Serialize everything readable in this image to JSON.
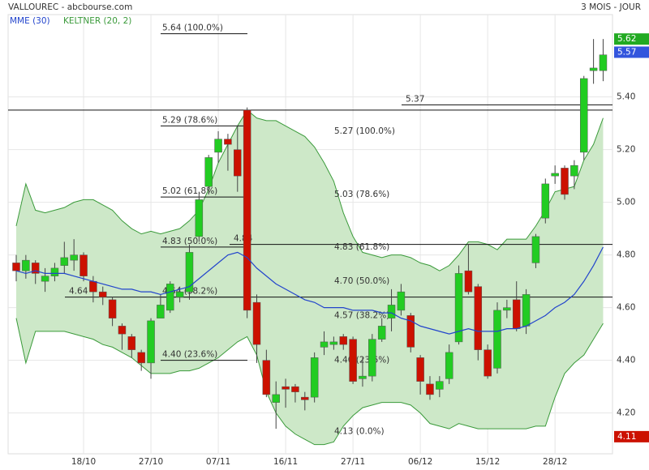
{
  "chart_data": {
    "type": "candlestick",
    "title": "VALLOUREC - abcbourse.com",
    "period": "3 MOIS - JOUR",
    "categories": [
      null,
      null,
      null,
      null,
      null,
      null,
      null,
      "18/10",
      null,
      null,
      null,
      null,
      null,
      null,
      "27/10",
      null,
      null,
      null,
      null,
      null,
      null,
      "07/11",
      null,
      null,
      null,
      null,
      null,
      null,
      "16/11",
      null,
      null,
      null,
      null,
      null,
      null,
      "27/11",
      null,
      null,
      null,
      null,
      null,
      null,
      "06/12",
      null,
      null,
      null,
      null,
      null,
      null,
      "15/12",
      null,
      null,
      null,
      null,
      null,
      null,
      "28/12",
      null,
      null,
      null,
      null,
      null
    ],
    "open": [
      4.77,
      4.74,
      4.77,
      4.7,
      4.72,
      4.76,
      4.78,
      4.8,
      4.7,
      4.66,
      4.63,
      4.53,
      4.49,
      4.43,
      4.39,
      4.56,
      4.59,
      4.64,
      4.66,
      4.87,
      5.06,
      5.19,
      5.24,
      5.2,
      5.35,
      4.62,
      4.4,
      4.24,
      4.3,
      4.3,
      4.26,
      4.26,
      4.45,
      4.46,
      4.49,
      4.48,
      4.33,
      4.34,
      4.48,
      4.56,
      4.59,
      4.57,
      4.41,
      4.31,
      4.29,
      4.33,
      4.47,
      4.74,
      4.68,
      4.44,
      4.37,
      4.59,
      4.63,
      4.53,
      4.77,
      4.94,
      5.1,
      5.13,
      5.1,
      5.19,
      5.5,
      5.5
    ],
    "high": [
      4.8,
      4.8,
      4.78,
      4.75,
      4.77,
      4.85,
      4.86,
      4.81,
      4.72,
      4.68,
      4.64,
      4.54,
      4.5,
      4.44,
      4.56,
      4.65,
      4.7,
      4.68,
      4.84,
      5.04,
      5.18,
      5.27,
      5.26,
      5.29,
      5.36,
      4.65,
      4.44,
      4.32,
      4.33,
      4.31,
      4.28,
      4.43,
      4.51,
      4.49,
      4.5,
      4.49,
      4.41,
      4.5,
      4.56,
      4.67,
      4.69,
      4.58,
      4.42,
      4.34,
      4.34,
      4.46,
      4.76,
      4.84,
      4.69,
      4.46,
      4.62,
      4.63,
      4.7,
      4.67,
      4.88,
      5.09,
      5.14,
      5.14,
      5.16,
      5.48,
      5.62,
      5.62
    ],
    "low": [
      4.7,
      4.71,
      4.69,
      4.66,
      4.7,
      4.73,
      4.74,
      4.7,
      4.62,
      4.61,
      4.53,
      4.44,
      4.41,
      4.36,
      4.33,
      4.56,
      4.58,
      4.62,
      4.63,
      4.85,
      5.03,
      5.15,
      5.12,
      5.04,
      4.56,
      4.39,
      4.26,
      4.14,
      4.22,
      4.24,
      4.21,
      4.24,
      4.42,
      4.44,
      4.44,
      4.31,
      4.3,
      4.32,
      4.47,
      4.51,
      4.57,
      4.43,
      4.27,
      4.25,
      4.26,
      4.31,
      4.46,
      4.65,
      4.4,
      4.33,
      4.35,
      4.56,
      4.51,
      4.5,
      4.75,
      4.92,
      5.07,
      5.01,
      5.05,
      5.16,
      5.45,
      5.46
    ],
    "close": [
      4.74,
      4.78,
      4.73,
      4.72,
      4.75,
      4.79,
      4.8,
      4.72,
      4.66,
      4.64,
      4.56,
      4.5,
      4.44,
      4.39,
      4.55,
      4.61,
      4.69,
      4.66,
      4.81,
      5.01,
      5.17,
      5.24,
      5.22,
      5.1,
      4.59,
      4.46,
      4.27,
      4.27,
      4.29,
      4.28,
      4.25,
      4.41,
      4.47,
      4.47,
      4.46,
      4.32,
      4.34,
      4.48,
      4.53,
      4.61,
      4.66,
      4.45,
      4.32,
      4.27,
      4.32,
      4.43,
      4.73,
      4.66,
      4.44,
      4.34,
      4.59,
      4.6,
      4.52,
      4.65,
      4.87,
      5.07,
      5.11,
      5.03,
      5.14,
      5.47,
      5.51,
      5.56
    ],
    "up_color": "#22cc22",
    "down_color": "#cc1100",
    "keltner": {
      "name": "KELTNER (20, 2)",
      "color": "#3a9a3a",
      "fill": "#cde8c8",
      "upper": [
        4.91,
        5.07,
        4.97,
        4.96,
        4.97,
        4.98,
        5.0,
        5.01,
        5.01,
        4.99,
        4.97,
        4.93,
        4.9,
        4.88,
        4.89,
        4.88,
        4.89,
        4.9,
        4.93,
        4.97,
        5.05,
        5.15,
        5.22,
        5.29,
        5.35,
        5.32,
        5.31,
        5.31,
        5.29,
        5.27,
        5.25,
        5.21,
        5.15,
        5.08,
        4.96,
        4.87,
        4.81,
        4.8,
        4.79,
        4.8,
        4.8,
        4.79,
        4.77,
        4.76,
        4.74,
        4.76,
        4.8,
        4.85,
        4.85,
        4.84,
        4.82,
        4.86,
        4.86,
        4.86,
        4.91,
        4.97,
        5.04,
        5.05,
        5.06,
        5.16,
        5.22,
        5.32
      ],
      "lower": [
        4.56,
        4.39,
        4.51,
        4.51,
        4.51,
        4.51,
        4.5,
        4.49,
        4.48,
        4.46,
        4.45,
        4.43,
        4.41,
        4.38,
        4.35,
        4.35,
        4.35,
        4.36,
        4.36,
        4.37,
        4.39,
        4.41,
        4.44,
        4.47,
        4.49,
        4.42,
        4.28,
        4.2,
        4.15,
        4.12,
        4.1,
        4.08,
        4.08,
        4.09,
        4.15,
        4.19,
        4.22,
        4.23,
        4.24,
        4.24,
        4.24,
        4.23,
        4.2,
        4.16,
        4.15,
        4.14,
        4.16,
        4.15,
        4.14,
        4.14,
        4.14,
        4.14,
        4.14,
        4.14,
        4.15,
        4.15,
        4.26,
        4.35,
        4.39,
        4.42,
        4.48,
        4.54
      ]
    },
    "mme": {
      "name": "MME (30)",
      "color": "#2244cc",
      "values": [
        4.74,
        4.73,
        4.74,
        4.73,
        4.73,
        4.73,
        4.72,
        4.71,
        4.7,
        4.69,
        4.68,
        4.67,
        4.67,
        4.66,
        4.66,
        4.65,
        4.66,
        4.67,
        4.68,
        4.71,
        4.74,
        4.77,
        4.8,
        4.81,
        4.79,
        4.75,
        4.72,
        4.69,
        4.67,
        4.65,
        4.63,
        4.62,
        4.6,
        4.6,
        4.6,
        4.59,
        4.59,
        4.59,
        4.58,
        4.58,
        4.56,
        4.55,
        4.53,
        4.52,
        4.51,
        4.5,
        4.51,
        4.52,
        4.51,
        4.51,
        4.51,
        4.52,
        4.52,
        4.53,
        4.55,
        4.57,
        4.6,
        4.62,
        4.65,
        4.7,
        4.76,
        4.83
      ]
    },
    "ylim": [
      4.045,
      5.719
    ],
    "yticks": [
      {
        "value": 4.2,
        "label": "4.20"
      },
      {
        "value": 4.4,
        "label": "4.40"
      },
      {
        "value": 4.6,
        "label": "4.60"
      },
      {
        "value": 4.8,
        "label": "4.80"
      },
      {
        "value": 5.0,
        "label": "5.00"
      },
      {
        "value": 5.2,
        "label": "5.20"
      },
      {
        "value": 5.4,
        "label": "5.40"
      }
    ],
    "grid": true,
    "fib_left": [
      {
        "value": 5.64,
        "label": "5.64 (100.0%)"
      },
      {
        "value": 5.29,
        "label": "5.29 (78.6%)"
      },
      {
        "value": 5.02,
        "label": "5.02 (61.8%)"
      },
      {
        "value": 4.83,
        "label": "4.83 (50.0%)"
      },
      {
        "value": 4.64,
        "label": "4.64 (38.2%)"
      },
      {
        "value": 4.4,
        "label": "4.40 (23.6%)"
      }
    ],
    "fib_right": [
      {
        "value": 5.27,
        "label": "5.27 (100.0%)"
      },
      {
        "value": 5.03,
        "label": "5.03 (78.6%)"
      },
      {
        "value": 4.83,
        "label": "4.83 (61.8%)"
      },
      {
        "value": 4.7,
        "label": "4.70 (50.0%)"
      },
      {
        "value": 4.57,
        "label": "4.57 (38.2%)"
      },
      {
        "value": 4.4,
        "label": "4.40 (23.6%)"
      },
      {
        "value": 4.13,
        "label": "4.13 (0.0%)"
      }
    ],
    "levels": [
      5.35,
      4.64,
      4.84,
      5.37
    ],
    "price_markers": [
      {
        "value": 5.62,
        "color": "#22aa22"
      },
      {
        "value": 5.57,
        "color": "#3355dd"
      },
      {
        "value": 4.11,
        "color": "#cc1100"
      }
    ]
  }
}
